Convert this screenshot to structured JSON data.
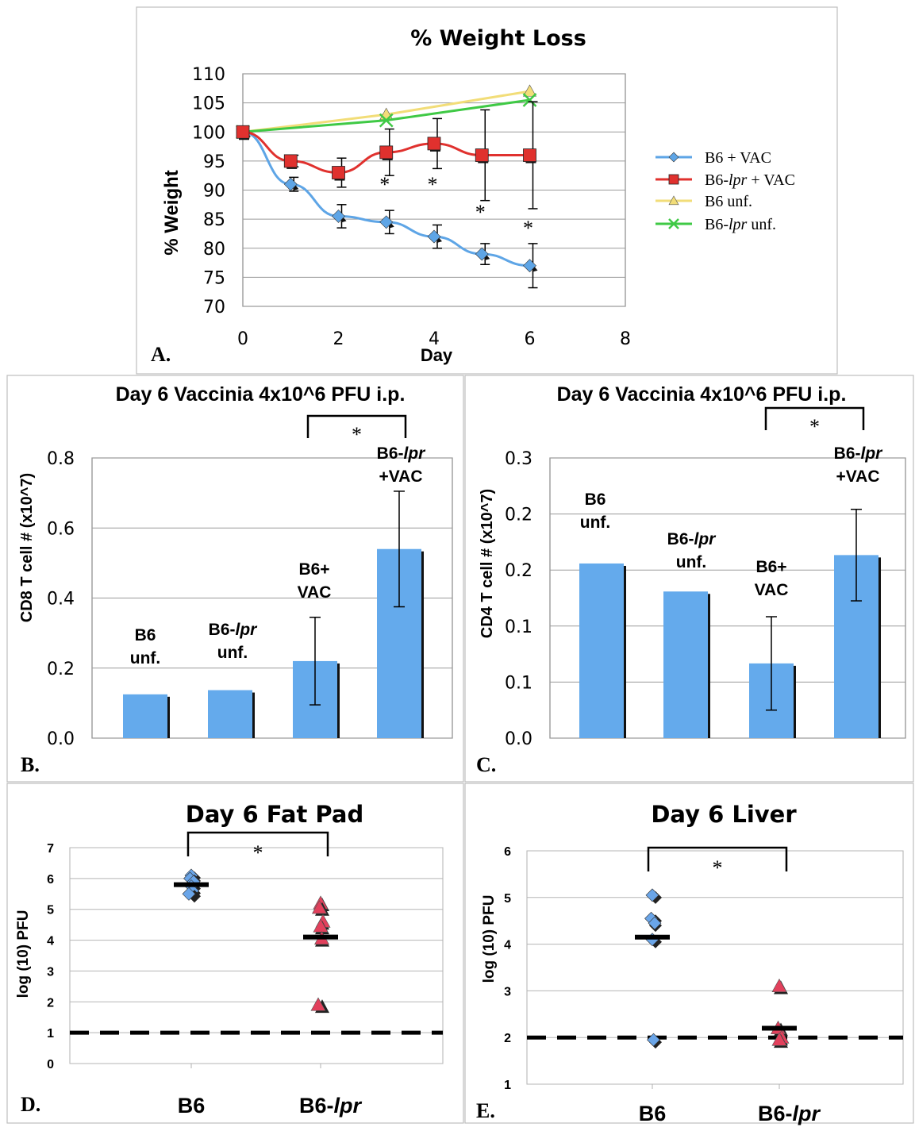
{
  "colors": {
    "b6_vac": "#5ea5e6",
    "b6lpr_vac": "#e0312e",
    "b6_unf": "#f2dd78",
    "b6lpr_unf": "#3fc945",
    "bar": "#64aaec",
    "scatter_b6": "#6aa5e8",
    "scatter_b6lpr": "#e2405c",
    "mean_mark": "#000000"
  },
  "panels": {
    "A": {
      "letter": "A."
    },
    "B": {
      "letter": "B."
    },
    "C": {
      "letter": "C."
    },
    "D": {
      "letter": "D."
    },
    "E": {
      "letter": "E."
    }
  },
  "chart_data": [
    {
      "id": "A",
      "type": "line",
      "title": "% Weight Loss",
      "xlabel": "Day",
      "ylabel": "% Weight",
      "xlim": [
        0,
        8
      ],
      "ylim": [
        70,
        110
      ],
      "xticks": [
        0,
        2,
        4,
        6,
        8
      ],
      "yticks": [
        70,
        75,
        80,
        85,
        90,
        95,
        100,
        105,
        110
      ],
      "grid": true,
      "legend": "right",
      "series": [
        {
          "name": "B6 + VAC",
          "marker": "diamond",
          "color_key": "b6_vac",
          "x": [
            0,
            1,
            2,
            3,
            4,
            5,
            6
          ],
          "y": [
            100,
            91,
            85.5,
            84.5,
            82,
            79,
            77
          ],
          "err": [
            0,
            1.2,
            2,
            2,
            2,
            1.8,
            3.8
          ]
        },
        {
          "name": "B6-lpr + VAC",
          "marker": "square",
          "color_key": "b6lpr_vac",
          "x": [
            0,
            1,
            2,
            3,
            4,
            5,
            6
          ],
          "y": [
            100,
            95,
            93,
            96.5,
            98,
            96,
            96
          ],
          "err": [
            0,
            1,
            2.5,
            4,
            4.3,
            7.8,
            9.2
          ]
        },
        {
          "name": "B6 unf.",
          "marker": "triangle",
          "color_key": "b6_unf",
          "x": [
            0,
            3,
            6
          ],
          "y": [
            100,
            103,
            107
          ],
          "err": [
            0,
            0,
            0
          ]
        },
        {
          "name": "B6-lpr unf.",
          "marker": "x",
          "color_key": "b6lpr_unf",
          "x": [
            0,
            3,
            6
          ],
          "y": [
            100,
            102,
            105.5
          ],
          "err": [
            0,
            0,
            0
          ]
        }
      ],
      "annotations": {
        "significance_days": [
          3,
          4,
          5,
          6
        ],
        "symbol": "*"
      }
    },
    {
      "id": "B",
      "type": "bar",
      "title": "Day 6 Vaccinia 4x10^6 PFU i.p.",
      "ylabel": "CD8 T cell # (x10^7)",
      "ylim": [
        0,
        0.8
      ],
      "yticks": [
        "0.0",
        "0.2",
        "0.4",
        "0.6",
        "0.8"
      ],
      "categories": [
        {
          "line1": "B6",
          "line1_italic": "",
          "line2": "unf."
        },
        {
          "line1": "B6-",
          "line1_italic": "lpr",
          "line2": "unf."
        },
        {
          "line1": "B6+",
          "line1_italic": "",
          "line2": "VAC"
        },
        {
          "line1": "B6-",
          "line1_italic": "lpr",
          "line2": "+VAC"
        }
      ],
      "values": [
        0.125,
        0.137,
        0.22,
        0.54
      ],
      "err": [
        0,
        0,
        0.125,
        0.165
      ],
      "significance": {
        "between": [
          2,
          3
        ],
        "symbol": "*"
      }
    },
    {
      "id": "C",
      "type": "bar",
      "title": "Day 6 Vaccinia 4x10^6 PFU i.p.",
      "ylabel": "CD4 T cell # (x10^7)",
      "ylim": [
        0,
        0.3
      ],
      "yticks": [
        "0.0",
        "0.1",
        "0.1",
        "0.2",
        "0.2",
        "0.3"
      ],
      "categories": [
        {
          "line1": "B6",
          "line1_italic": "",
          "line2": "unf."
        },
        {
          "line1": "B6-",
          "line1_italic": "lpr",
          "line2": "unf."
        },
        {
          "line1": "B6+",
          "line1_italic": "",
          "line2": "VAC"
        },
        {
          "line1": "B6-",
          "line1_italic": "lpr",
          "line2": "+VAC"
        }
      ],
      "values": [
        0.187,
        0.157,
        0.08,
        0.196
      ],
      "err": [
        0,
        0,
        0.05,
        0.049
      ],
      "significance": {
        "between": [
          2,
          3
        ],
        "symbol": "*"
      }
    },
    {
      "id": "D",
      "type": "scatter",
      "title": "Day 6 Fat Pad",
      "ylabel": "log (10) PFU",
      "ylim": [
        0,
        7
      ],
      "yticks": [
        "0",
        "1",
        "2",
        "3",
        "4",
        "5",
        "6",
        "7"
      ],
      "categories": [
        {
          "label": "B6",
          "italic": ""
        },
        {
          "label": "B6-",
          "italic": "lpr"
        }
      ],
      "points": [
        {
          "group": 0,
          "marker": "diamond",
          "values": [
            6.1,
            6.0,
            5.9,
            5.75,
            5.6,
            5.5
          ]
        },
        {
          "group": 1,
          "marker": "triangle",
          "values": [
            5.2,
            5.05,
            4.6,
            4.45,
            4.05,
            1.9
          ]
        }
      ],
      "means": [
        5.8,
        4.1
      ],
      "detection_limit": 1,
      "significance": {
        "between": [
          0,
          1
        ],
        "symbol": "*"
      }
    },
    {
      "id": "E",
      "type": "scatter",
      "title": "Day 6 Liver",
      "ylabel": "log (10) PFU",
      "ylim": [
        1,
        6
      ],
      "yticks": [
        "1",
        "2",
        "3",
        "4",
        "5",
        "6"
      ],
      "categories": [
        {
          "label": "B6",
          "italic": ""
        },
        {
          "label": "B6-",
          "italic": "lpr"
        }
      ],
      "points": [
        {
          "group": 0,
          "marker": "diamond",
          "values": [
            5.05,
            4.55,
            4.45,
            4.1,
            1.95
          ]
        },
        {
          "group": 1,
          "marker": "triangle",
          "values": [
            3.1,
            2.2,
            2.0,
            1.95
          ]
        }
      ],
      "means": [
        4.15,
        2.2
      ],
      "detection_limit": 2,
      "significance": {
        "between": [
          0,
          1
        ],
        "symbol": "*"
      }
    }
  ]
}
